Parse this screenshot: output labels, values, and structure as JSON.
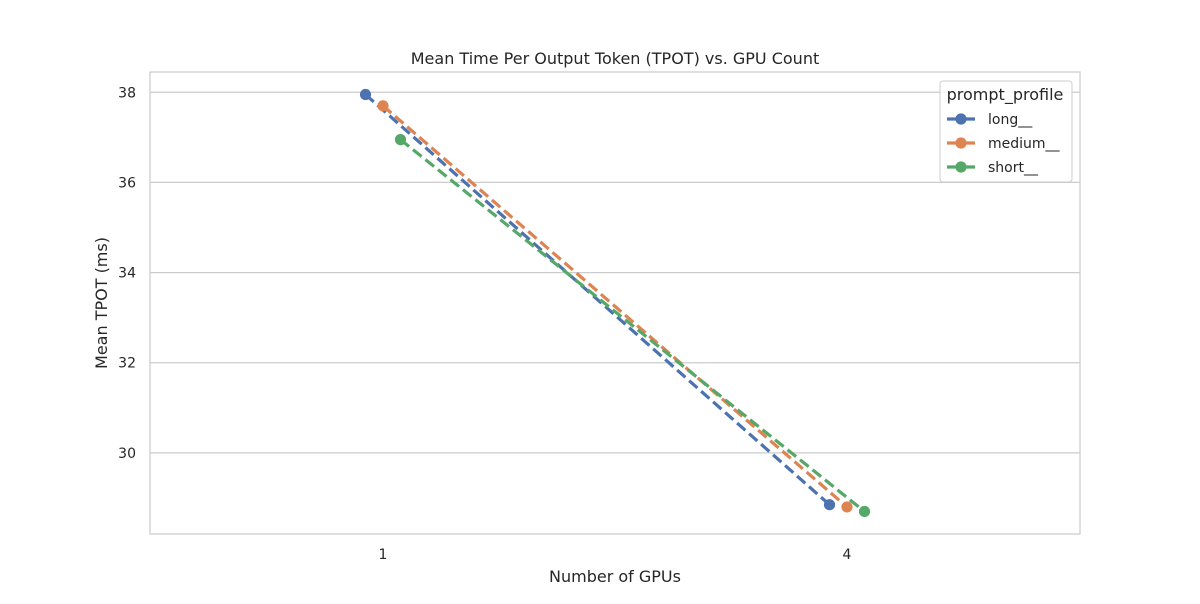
{
  "chart_data": {
    "type": "line",
    "title": "Mean Time Per Output Token (TPOT) vs. GPU Count",
    "xlabel": "Number of GPUs",
    "ylabel": "Mean TPOT (ms)",
    "categories": [
      "1",
      "4"
    ],
    "y_ticks": [
      30,
      32,
      34,
      36,
      38
    ],
    "ylim": [
      28.2,
      38.45
    ],
    "grid": "horizontal",
    "line_style": "dashed",
    "markers": "circle",
    "legend": {
      "title": "prompt_profile",
      "position": "top-right"
    },
    "series": [
      {
        "name": "long__",
        "color": "#4c72b0",
        "values": [
          37.95,
          28.85
        ]
      },
      {
        "name": "medium__",
        "color": "#dd8452",
        "values": [
          37.7,
          28.8
        ]
      },
      {
        "name": "short__",
        "color": "#55a868",
        "values": [
          36.95,
          28.7
        ]
      }
    ]
  }
}
